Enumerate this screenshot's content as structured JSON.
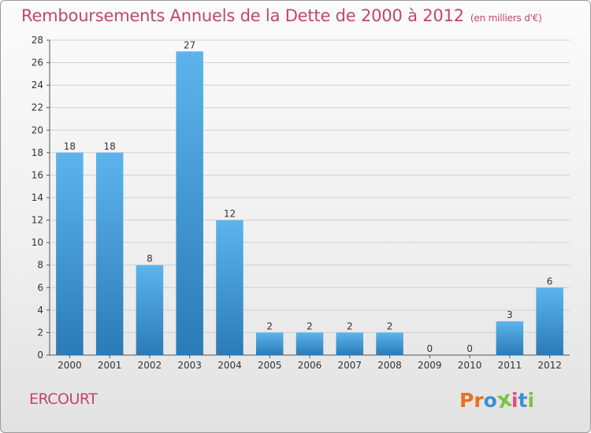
{
  "header": {
    "title": "Remboursements Annuels de la Dette de 2000 à 2012",
    "unit": "(en milliers d'€)"
  },
  "footer": {
    "town": "ERCOURT",
    "logo_letters": [
      "P",
      "r",
      "o",
      "x",
      "i",
      "t",
      "i"
    ]
  },
  "colors": {
    "title": "#c0456f",
    "bar_top": "#5db4ec",
    "bar_bottom": "#2a7bb8",
    "logo": [
      "#e8711e",
      "#e8711e",
      "#3f8fd2",
      "#7cc243",
      "#e54a86",
      "#3f8fd2",
      "#7cc243"
    ]
  },
  "chart_data": {
    "type": "bar",
    "title": "Remboursements Annuels de la Dette de 2000 à 2012",
    "categories": [
      "2000",
      "2001",
      "2002",
      "2003",
      "2004",
      "2005",
      "2006",
      "2007",
      "2008",
      "2009",
      "2010",
      "2011",
      "2012"
    ],
    "values": [
      18,
      18,
      8,
      27,
      12,
      2,
      2,
      2,
      2,
      0,
      0,
      3,
      6
    ],
    "ylim": [
      0,
      28
    ],
    "yticks": [
      0,
      2,
      4,
      6,
      8,
      10,
      12,
      14,
      16,
      18,
      20,
      22,
      24,
      26,
      28
    ],
    "grid": true
  }
}
